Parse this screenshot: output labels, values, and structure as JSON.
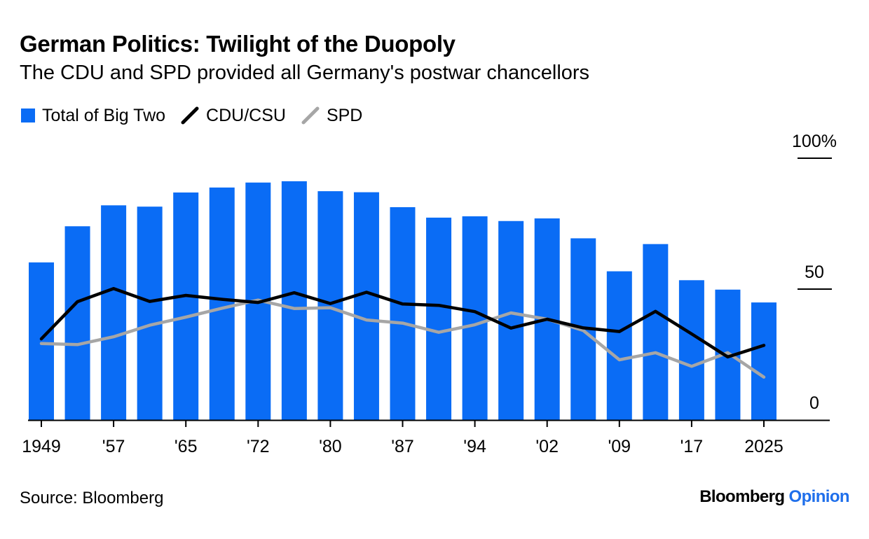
{
  "header": {
    "title": "German Politics: Twilight of the Duopoly",
    "subtitle": "The CDU and SPD provided all Germany's postwar chancellors"
  },
  "footer": {
    "source": "Source: Bloomberg",
    "brand_main": "Bloomberg",
    "brand_accent": "Opinion"
  },
  "colors": {
    "bars": "#0a6cf5",
    "cdu": "#000000",
    "spd": "#a6a6a6",
    "axis": "#000000"
  },
  "chart_data": {
    "type": "bar",
    "title": "German Politics: Twilight of the Duopoly",
    "subtitle": "The CDU and SPD provided all Germany's postwar chancellors",
    "x": [
      1949,
      1953,
      1957,
      1961,
      1965,
      1969,
      1972,
      1976,
      1980,
      1983,
      1987,
      1990,
      1994,
      1998,
      2002,
      2005,
      2009,
      2013,
      2017,
      2021,
      2025
    ],
    "x_tick_labels": [
      {
        "x": 1949,
        "label": "1949"
      },
      {
        "x": 1957,
        "label": "'57"
      },
      {
        "x": 1965,
        "label": "'65"
      },
      {
        "x": 1972,
        "label": "'72"
      },
      {
        "x": 1980,
        "label": "'80"
      },
      {
        "x": 1987,
        "label": "'87"
      },
      {
        "x": 1994,
        "label": "'94"
      },
      {
        "x": 2002,
        "label": "'02"
      },
      {
        "x": 2009,
        "label": "'09"
      },
      {
        "x": 2017,
        "label": "'17"
      },
      {
        "x": 2025,
        "label": "2025"
      }
    ],
    "y_tick_labels": [
      {
        "y": 0,
        "label": "0"
      },
      {
        "y": 50,
        "label": "50"
      },
      {
        "y": 100,
        "label": "100%"
      }
    ],
    "ylim": [
      0,
      100
    ],
    "xlabel": "",
    "ylabel": "",
    "y_axis_side": "right",
    "legend_placement": "top-left",
    "grid": false,
    "series": [
      {
        "name": "Total of Big Two",
        "type": "bar",
        "values": [
          60.2,
          74.0,
          82.0,
          81.5,
          86.9,
          88.8,
          90.7,
          91.2,
          87.4,
          87.0,
          81.3,
          77.3,
          77.8,
          76.0,
          77.0,
          69.4,
          56.8,
          67.2,
          53.4,
          49.8,
          44.9
        ]
      },
      {
        "name": "CDU/CSU",
        "type": "line",
        "values": [
          31.0,
          45.2,
          50.2,
          45.3,
          47.6,
          46.1,
          44.9,
          48.6,
          44.5,
          48.8,
          44.3,
          43.8,
          41.4,
          35.1,
          38.5,
          35.2,
          33.8,
          41.5,
          32.9,
          24.1,
          28.5
        ]
      },
      {
        "name": "SPD",
        "type": "line",
        "values": [
          29.2,
          28.8,
          31.8,
          36.2,
          39.3,
          42.7,
          45.8,
          42.6,
          42.9,
          38.2,
          37.0,
          33.5,
          36.4,
          40.9,
          38.5,
          34.2,
          23.0,
          25.7,
          20.5,
          25.7,
          16.4
        ]
      }
    ]
  }
}
